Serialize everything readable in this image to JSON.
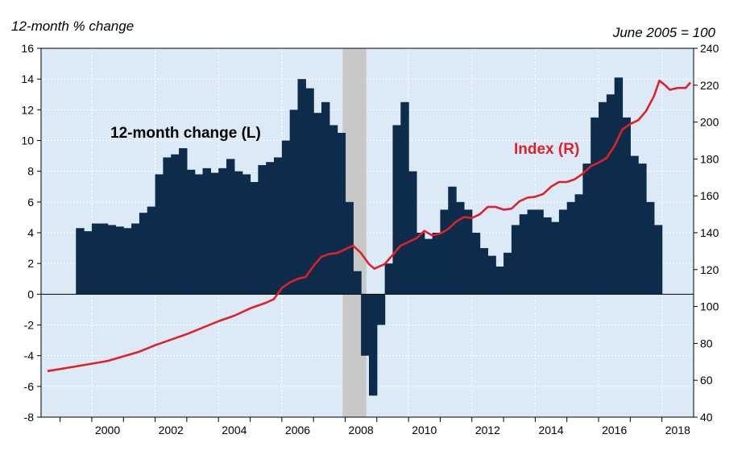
{
  "chart_data": {
    "type": "bar+line",
    "left_axis_title": "12-month % change",
    "right_axis_title": "June 2005 = 100",
    "left_ylim": [
      -8,
      16
    ],
    "left_yticks": [
      16,
      14,
      12,
      10,
      8,
      6,
      4,
      2,
      0,
      -2,
      -4,
      -6,
      -8
    ],
    "right_ylim": [
      40,
      240
    ],
    "right_yticks": [
      240,
      220,
      200,
      180,
      160,
      140,
      120,
      100,
      80,
      60,
      40
    ],
    "xlim": [
      1998.4,
      2019.0
    ],
    "x_tick_labels": [
      "2000",
      "2002",
      "2004",
      "2006",
      "2008",
      "2010",
      "2012",
      "2014",
      "2016",
      "2018"
    ],
    "recession": [
      2007.92,
      2008.67
    ],
    "colors": {
      "bars": "#0d2c4b",
      "line": "#e0202a",
      "plot_bg": "#dce9f7",
      "recession": "#c8c8c8"
    },
    "annotations": [
      {
        "text": "12-month change (L)",
        "color": "#000000"
      },
      {
        "text": "Index (R)",
        "color": "#e0202a"
      }
    ],
    "series": [
      {
        "name": "12-month change (L)",
        "type": "bar",
        "axis": "left",
        "points": [
          [
            1999.5,
            4.3
          ],
          [
            1999.75,
            4.1
          ],
          [
            2000.0,
            4.6
          ],
          [
            2000.25,
            4.6
          ],
          [
            2000.5,
            4.5
          ],
          [
            2000.75,
            4.4
          ],
          [
            2001.0,
            4.3
          ],
          [
            2001.25,
            4.6
          ],
          [
            2001.5,
            5.3
          ],
          [
            2001.75,
            5.7
          ],
          [
            2002.0,
            7.8
          ],
          [
            2002.25,
            8.9
          ],
          [
            2002.5,
            9.1
          ],
          [
            2002.75,
            9.5
          ],
          [
            2003.0,
            8.1
          ],
          [
            2003.25,
            7.8
          ],
          [
            2003.5,
            8.2
          ],
          [
            2003.75,
            7.9
          ],
          [
            2004.0,
            8.2
          ],
          [
            2004.25,
            8.8
          ],
          [
            2004.5,
            8.0
          ],
          [
            2004.75,
            7.8
          ],
          [
            2005.0,
            7.3
          ],
          [
            2005.25,
            8.4
          ],
          [
            2005.5,
            8.6
          ],
          [
            2005.75,
            8.9
          ],
          [
            2006.0,
            10.0
          ],
          [
            2006.25,
            12.0
          ],
          [
            2006.5,
            14.0
          ],
          [
            2006.75,
            13.4
          ],
          [
            2007.0,
            11.8
          ],
          [
            2007.25,
            12.5
          ],
          [
            2007.5,
            11.0
          ],
          [
            2007.75,
            10.5
          ],
          [
            2008.0,
            6.0
          ],
          [
            2008.25,
            1.5
          ],
          [
            2008.5,
            -4.0
          ],
          [
            2008.75,
            -6.6
          ],
          [
            2009.0,
            -2.0
          ],
          [
            2009.25,
            2.0
          ],
          [
            2009.5,
            11.0
          ],
          [
            2009.75,
            12.5
          ],
          [
            2010.0,
            8.0
          ],
          [
            2010.25,
            4.0
          ],
          [
            2010.5,
            3.6
          ],
          [
            2010.75,
            4.0
          ],
          [
            2011.0,
            5.5
          ],
          [
            2011.25,
            7.0
          ],
          [
            2011.5,
            6.0
          ],
          [
            2011.75,
            5.5
          ],
          [
            2012.0,
            4.0
          ],
          [
            2012.25,
            3.0
          ],
          [
            2012.5,
            2.5
          ],
          [
            2012.75,
            1.8
          ],
          [
            2013.0,
            2.7
          ],
          [
            2013.25,
            4.5
          ],
          [
            2013.5,
            5.2
          ],
          [
            2013.75,
            5.5
          ],
          [
            2014.0,
            5.5
          ],
          [
            2014.25,
            5.0
          ],
          [
            2014.5,
            4.7
          ],
          [
            2014.75,
            5.5
          ],
          [
            2015.0,
            6.0
          ],
          [
            2015.25,
            6.5
          ],
          [
            2015.5,
            8.5
          ],
          [
            2015.75,
            11.5
          ],
          [
            2016.0,
            12.5
          ],
          [
            2016.25,
            13.0
          ],
          [
            2016.5,
            14.1
          ],
          [
            2016.75,
            11.5
          ],
          [
            2017.0,
            9.0
          ],
          [
            2017.25,
            8.5
          ],
          [
            2017.5,
            6.0
          ],
          [
            2017.75,
            4.5
          ]
        ]
      },
      {
        "name": "Index (R)",
        "type": "line",
        "axis": "right",
        "points": [
          [
            1998.6,
            65
          ],
          [
            1999.5,
            67.5
          ],
          [
            2000.5,
            70.5
          ],
          [
            2001.5,
            75.5
          ],
          [
            2002.0,
            79
          ],
          [
            2002.5,
            82
          ],
          [
            2003.0,
            85
          ],
          [
            2003.5,
            88.5
          ],
          [
            2004.0,
            92
          ],
          [
            2004.5,
            95
          ],
          [
            2005.0,
            99
          ],
          [
            2005.5,
            102
          ],
          [
            2005.75,
            104
          ],
          [
            2006.0,
            110
          ],
          [
            2006.25,
            113
          ],
          [
            2006.5,
            115
          ],
          [
            2006.75,
            116
          ],
          [
            2007.0,
            122
          ],
          [
            2007.25,
            127
          ],
          [
            2007.5,
            128.5
          ],
          [
            2007.75,
            129
          ],
          [
            2008.0,
            131
          ],
          [
            2008.25,
            133
          ],
          [
            2008.5,
            129
          ],
          [
            2008.75,
            123
          ],
          [
            2008.92,
            120.5
          ],
          [
            2009.25,
            123
          ],
          [
            2009.5,
            128
          ],
          [
            2009.75,
            133
          ],
          [
            2010.0,
            135
          ],
          [
            2010.25,
            137
          ],
          [
            2010.5,
            141
          ],
          [
            2010.75,
            138.5
          ],
          [
            2011.0,
            139.5
          ],
          [
            2011.25,
            142
          ],
          [
            2011.5,
            146
          ],
          [
            2011.75,
            148.5
          ],
          [
            2012.0,
            148
          ],
          [
            2012.25,
            150
          ],
          [
            2012.5,
            154
          ],
          [
            2012.75,
            154
          ],
          [
            2013.0,
            152.5
          ],
          [
            2013.25,
            153
          ],
          [
            2013.5,
            157
          ],
          [
            2013.75,
            159
          ],
          [
            2014.0,
            159.5
          ],
          [
            2014.25,
            161
          ],
          [
            2014.5,
            165
          ],
          [
            2014.75,
            167.5
          ],
          [
            2015.0,
            167.5
          ],
          [
            2015.25,
            169
          ],
          [
            2015.5,
            172
          ],
          [
            2015.75,
            176
          ],
          [
            2016.0,
            178
          ],
          [
            2016.25,
            180.5
          ],
          [
            2016.5,
            187
          ],
          [
            2016.75,
            196
          ],
          [
            2017.0,
            199
          ],
          [
            2017.25,
            201
          ],
          [
            2017.5,
            206
          ],
          [
            2017.75,
            214
          ],
          [
            2017.92,
            222.5
          ],
          [
            2018.1,
            220
          ],
          [
            2018.25,
            217.5
          ],
          [
            2018.5,
            218.5
          ],
          [
            2018.75,
            218.5
          ],
          [
            2018.9,
            221.5
          ]
        ]
      }
    ]
  }
}
